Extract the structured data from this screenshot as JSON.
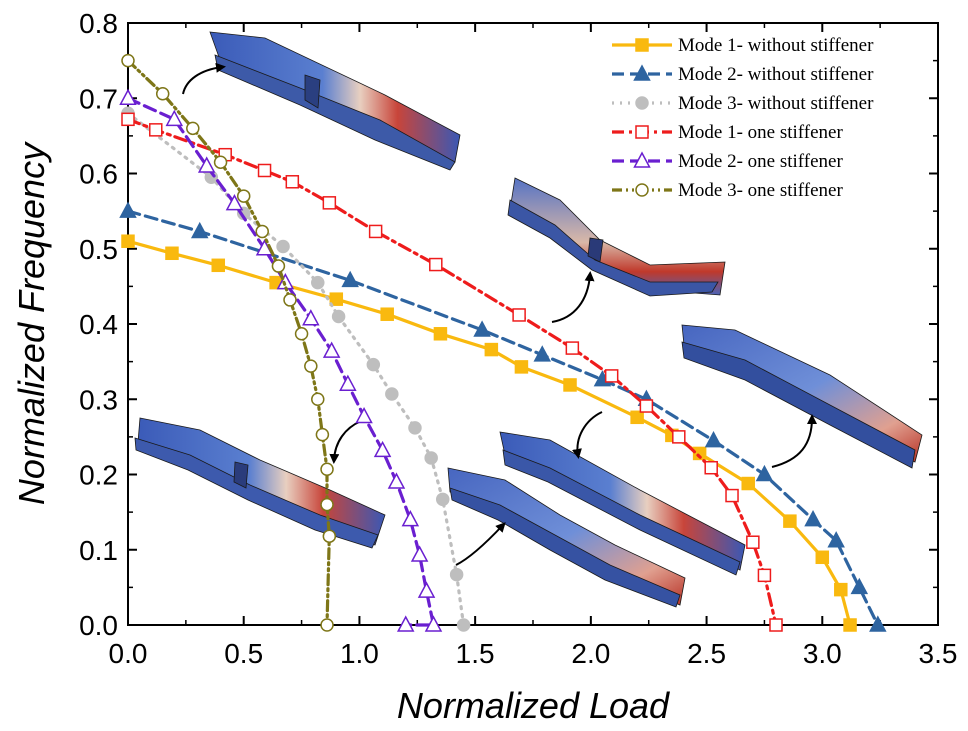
{
  "chart_data": {
    "type": "line",
    "title": "",
    "xlabel": "Normalized Load",
    "ylabel": "Normalized Frequency",
    "xlim": [
      0.0,
      3.5
    ],
    "ylim": [
      0.0,
      0.8
    ],
    "xticks": [
      "0.0",
      "0.5",
      "1.0",
      "1.5",
      "2.0",
      "2.5",
      "3.0",
      "3.5"
    ],
    "yticks": [
      "0.0",
      "0.1",
      "0.2",
      "0.3",
      "0.4",
      "0.5",
      "0.6",
      "0.7",
      "0.8"
    ],
    "grid": false,
    "legend_position": "top-right",
    "series": [
      {
        "name": "Mode 1- without stiffener",
        "color": "#F9B90F",
        "dash": "solid",
        "marker": "square-filled",
        "x": [
          0.0,
          0.19,
          0.39,
          0.64,
          0.9,
          1.12,
          1.35,
          1.57,
          1.7,
          1.91,
          2.2,
          2.35,
          2.47,
          2.68,
          2.86,
          3.0,
          3.08,
          3.12
        ],
        "y": [
          0.51,
          0.494,
          0.478,
          0.455,
          0.433,
          0.413,
          0.387,
          0.366,
          0.343,
          0.319,
          0.276,
          0.252,
          0.228,
          0.188,
          0.138,
          0.09,
          0.047,
          0.0
        ]
      },
      {
        "name": "Mode 2- without stiffener",
        "color": "#2E64A0",
        "dash": "dashed",
        "marker": "triangle-filled",
        "x": [
          0.0,
          0.31,
          0.96,
          1.53,
          1.79,
          2.05,
          2.24,
          2.53,
          2.75,
          2.96,
          3.06,
          3.16,
          3.24
        ],
        "y": [
          0.55,
          0.523,
          0.458,
          0.392,
          0.359,
          0.326,
          0.3,
          0.245,
          0.2,
          0.14,
          0.112,
          0.05,
          0.0
        ]
      },
      {
        "name": "Mode 3- without stiffener",
        "color": "#BEBEBE",
        "dash": "dotted",
        "marker": "circle-filled",
        "x": [
          0.0,
          0.36,
          0.5,
          0.67,
          0.82,
          0.91,
          1.06,
          1.14,
          1.24,
          1.31,
          1.36,
          1.42,
          1.45
        ],
        "y": [
          0.68,
          0.595,
          0.547,
          0.503,
          0.455,
          0.41,
          0.346,
          0.307,
          0.262,
          0.222,
          0.167,
          0.067,
          0.0
        ]
      },
      {
        "name": "Mode 1- one stiffener",
        "color": "#EE1C1C",
        "dash": "dashdot",
        "marker": "square-open",
        "x": [
          0.0,
          0.12,
          0.42,
          0.59,
          0.71,
          0.87,
          1.07,
          1.33,
          1.69,
          1.92,
          2.09,
          2.24,
          2.38,
          2.52,
          2.61,
          2.7,
          2.75,
          2.8
        ],
        "y": [
          0.672,
          0.658,
          0.625,
          0.604,
          0.589,
          0.561,
          0.523,
          0.479,
          0.412,
          0.368,
          0.331,
          0.291,
          0.25,
          0.209,
          0.172,
          0.11,
          0.066,
          0.0
        ]
      },
      {
        "name": "Mode 2- one stiffener",
        "color": "#6A1FD0",
        "dash": "dashed",
        "marker": "triangle-open",
        "x": [
          0.0,
          0.2,
          0.34,
          0.46,
          0.59,
          0.68,
          0.79,
          0.88,
          0.95,
          1.02,
          1.1,
          1.16,
          1.22,
          1.26,
          1.29,
          1.32,
          1.2
        ],
        "y": [
          0.7,
          0.672,
          0.61,
          0.56,
          0.5,
          0.455,
          0.407,
          0.364,
          0.32,
          0.277,
          0.232,
          0.19,
          0.14,
          0.093,
          0.045,
          0.0,
          0.0
        ]
      },
      {
        "name": "Mode 3- one stiffener",
        "color": "#7E7618",
        "dash": "dashdotdot",
        "marker": "circle-open",
        "x": [
          0.0,
          0.15,
          0.28,
          0.4,
          0.5,
          0.58,
          0.65,
          0.7,
          0.75,
          0.79,
          0.82,
          0.84,
          0.86,
          0.86,
          0.87,
          0.86
        ],
        "y": [
          0.75,
          0.706,
          0.66,
          0.615,
          0.57,
          0.523,
          0.477,
          0.432,
          0.387,
          0.344,
          0.3,
          0.253,
          0.207,
          0.16,
          0.118,
          0.0
        ]
      }
    ]
  }
}
